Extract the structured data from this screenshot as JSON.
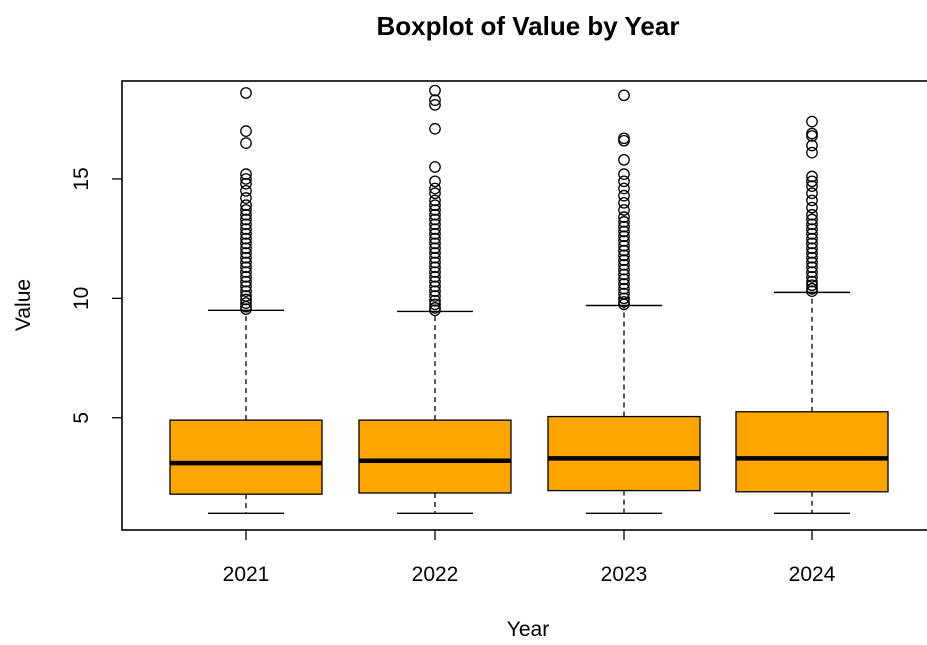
{
  "chart_data": {
    "type": "boxplot",
    "title": "Boxplot of Value by Year",
    "xlabel": "Year",
    "ylabel": "Value",
    "categories": [
      "2021",
      "2022",
      "2023",
      "2024"
    ],
    "y_ticks": [
      5,
      10,
      15
    ],
    "ylim": [
      0.3,
      19.1
    ],
    "box_color": "#FFA500",
    "grid": false,
    "boxes": [
      {
        "category": "2021",
        "whisker_low": 1.0,
        "q1": 1.8,
        "median": 3.1,
        "q3": 4.9,
        "whisker_high": 9.5,
        "outliers": [
          9.55,
          9.65,
          9.8,
          9.95,
          10.1,
          10.3,
          10.5,
          10.7,
          10.9,
          11.1,
          11.3,
          11.5,
          11.7,
          11.9,
          12.1,
          12.3,
          12.5,
          12.7,
          12.9,
          13.1,
          13.3,
          13.5,
          13.7,
          13.9,
          14.2,
          14.5,
          14.8,
          15.0,
          15.2,
          16.5,
          17.0,
          18.6
        ]
      },
      {
        "category": "2022",
        "whisker_low": 1.0,
        "q1": 1.85,
        "median": 3.2,
        "q3": 4.9,
        "whisker_high": 9.45,
        "outliers": [
          9.5,
          9.6,
          9.75,
          9.9,
          10.1,
          10.3,
          10.5,
          10.7,
          10.9,
          11.1,
          11.3,
          11.5,
          11.7,
          11.9,
          12.1,
          12.3,
          12.5,
          12.7,
          12.9,
          13.1,
          13.3,
          13.5,
          13.7,
          13.9,
          14.1,
          14.4,
          14.6,
          14.9,
          15.5,
          17.1,
          18.1,
          18.3,
          18.7
        ]
      },
      {
        "category": "2023",
        "whisker_low": 1.0,
        "q1": 1.95,
        "median": 3.3,
        "q3": 5.05,
        "whisker_high": 9.7,
        "outliers": [
          9.75,
          9.85,
          10.0,
          10.2,
          10.4,
          10.6,
          10.8,
          11.0,
          11.2,
          11.4,
          11.6,
          11.8,
          12.0,
          12.2,
          12.4,
          12.6,
          12.8,
          13.0,
          13.2,
          13.4,
          13.7,
          14.0,
          14.3,
          14.6,
          14.9,
          15.2,
          15.8,
          16.6,
          16.7,
          18.5
        ]
      },
      {
        "category": "2024",
        "whisker_low": 1.0,
        "q1": 1.9,
        "median": 3.3,
        "q3": 5.25,
        "whisker_high": 10.25,
        "outliers": [
          10.3,
          10.4,
          10.55,
          10.7,
          10.9,
          11.1,
          11.3,
          11.5,
          11.7,
          11.9,
          12.1,
          12.3,
          12.5,
          12.7,
          12.9,
          13.1,
          13.3,
          13.5,
          13.8,
          14.1,
          14.4,
          14.7,
          14.9,
          15.1,
          16.1,
          16.4,
          16.8,
          16.9,
          17.4
        ]
      }
    ]
  }
}
